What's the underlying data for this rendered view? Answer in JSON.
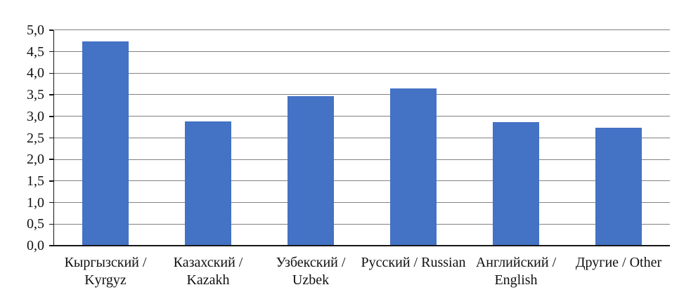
{
  "chart_data": {
    "type": "bar",
    "title": "",
    "categories": [
      "Кыргызский / Kyrgyz",
      "Казахский / Kazakh",
      "Узбекский / Uzbek",
      "Русский / Russian",
      "Английский / English",
      "Другие / Other"
    ],
    "values": [
      4.74,
      2.89,
      3.47,
      3.65,
      2.87,
      2.74
    ],
    "xlabel": "",
    "ylabel": "",
    "ylim": [
      0,
      5
    ],
    "ytick_step": 0.5,
    "ytick_labels": [
      "0,0",
      "0,5",
      "1,0",
      "1,5",
      "2,0",
      "2,5",
      "3,0",
      "3,5",
      "4,0",
      "4,5",
      "5,0"
    ],
    "grid": true,
    "legend": false,
    "bar_color": "#4472C4",
    "gridline_color": "#828282",
    "axis_color": "#161616",
    "text_color": "#111111"
  }
}
